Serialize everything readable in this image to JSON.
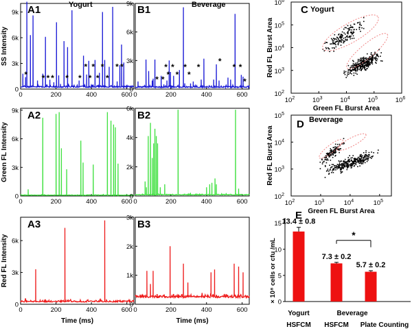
{
  "colors": {
    "blue": "#1a1ad6",
    "green": "#3ee03e",
    "red": "#ee1a1a",
    "bar": "#ee1111",
    "pink": "#f08080",
    "dot": "#000000"
  },
  "chart_data": [
    {
      "id": "A1",
      "type": "line",
      "title": "Yogurt",
      "ylabel": "SS Intensity",
      "xlabel": "",
      "xlim": [
        0,
        640
      ],
      "ylim": [
        0,
        10000
      ],
      "yticks": [
        0,
        3000,
        6000,
        9000
      ],
      "yticklabels": [
        "0",
        "3k",
        "6k",
        "9k"
      ],
      "xticks": [
        0,
        200,
        400,
        600
      ],
      "xticklabels": [
        "0",
        "200",
        "400",
        "600"
      ],
      "color": "blue",
      "baseline": 250,
      "noise": 180,
      "peaks": [
        [
          12,
          1800
        ],
        [
          27,
          1400
        ],
        [
          35,
          10200
        ],
        [
          55,
          6300
        ],
        [
          70,
          8600
        ],
        [
          95,
          1000
        ],
        [
          105,
          300
        ],
        [
          125,
          1800
        ],
        [
          140,
          6100
        ],
        [
          148,
          400
        ],
        [
          165,
          1100
        ],
        [
          188,
          800
        ],
        [
          202,
          7800
        ],
        [
          215,
          1600
        ],
        [
          225,
          600
        ],
        [
          245,
          5600
        ],
        [
          265,
          4900
        ],
        [
          290,
          9200
        ],
        [
          330,
          1000
        ],
        [
          355,
          3900
        ],
        [
          372,
          1700
        ],
        [
          385,
          3300
        ],
        [
          405,
          500
        ],
        [
          420,
          3400
        ],
        [
          445,
          1900
        ],
        [
          462,
          9000
        ],
        [
          475,
          3400
        ],
        [
          500,
          2600
        ],
        [
          520,
          9600
        ],
        [
          545,
          900
        ],
        [
          560,
          2800
        ],
        [
          570,
          5200
        ],
        [
          582,
          3100
        ],
        [
          600,
          500
        ]
      ],
      "stars": [
        [
          30,
          1700
        ],
        [
          128,
          1300
        ],
        [
          155,
          1300
        ],
        [
          180,
          1300
        ],
        [
          262,
          1300
        ],
        [
          335,
          1300
        ],
        [
          368,
          2600
        ],
        [
          392,
          1300
        ],
        [
          410,
          2600
        ],
        [
          435,
          1300
        ],
        [
          462,
          2600
        ],
        [
          490,
          1300
        ],
        [
          545,
          2600
        ],
        [
          572,
          2600
        ]
      ]
    },
    {
      "id": "B1",
      "type": "line",
      "title": "Beverage",
      "ylabel": "",
      "xlabel": "",
      "xlim": [
        0,
        640
      ],
      "ylim": [
        0,
        9000
      ],
      "yticks": [
        0,
        3000,
        6000,
        9000
      ],
      "yticklabels": [
        "0",
        "3k",
        "6k",
        "9k"
      ],
      "xticks": [
        0,
        200,
        400,
        600
      ],
      "xticklabels": [
        "0",
        "200",
        "400",
        "600"
      ],
      "color": "blue",
      "baseline": 200,
      "noise": 150,
      "peaks": [
        [
          15,
          800
        ],
        [
          60,
          3100
        ],
        [
          75,
          1900
        ],
        [
          95,
          900
        ],
        [
          100,
          1100
        ],
        [
          110,
          3100
        ],
        [
          145,
          1400
        ],
        [
          160,
          500
        ],
        [
          178,
          900
        ],
        [
          190,
          3000
        ],
        [
          198,
          1800
        ],
        [
          215,
          1400
        ],
        [
          248,
          2000
        ],
        [
          270,
          8600
        ],
        [
          278,
          600
        ],
        [
          310,
          600
        ],
        [
          325,
          800
        ],
        [
          370,
          1000
        ],
        [
          385,
          3200
        ],
        [
          440,
          1000
        ],
        [
          455,
          2600
        ],
        [
          470,
          900
        ],
        [
          520,
          1200
        ],
        [
          535,
          1000
        ],
        [
          560,
          7900
        ],
        [
          595,
          1500
        ],
        [
          605,
          1300
        ]
      ],
      "stars": [
        [
          122,
          1000
        ],
        [
          155,
          1000
        ],
        [
          172,
          2300
        ],
        [
          185,
          1500
        ],
        [
          210,
          2300
        ],
        [
          235,
          1500
        ],
        [
          280,
          2300
        ],
        [
          302,
          1500
        ],
        [
          355,
          2300
        ],
        [
          475,
          2900
        ],
        [
          555,
          2300
        ],
        [
          590,
          2300
        ],
        [
          615,
          800
        ]
      ]
    },
    {
      "id": "A2",
      "type": "line",
      "title": "",
      "ylabel": "Green FL Intensity",
      "xlabel": "",
      "xlim": [
        0,
        640
      ],
      "ylim": [
        0,
        9200
      ],
      "yticks": [
        0,
        3000,
        6000,
        9000
      ],
      "yticklabels": [
        "0",
        "3k",
        "6k",
        "9k"
      ],
      "xticks": [
        0,
        200,
        400,
        600
      ],
      "xticklabels": [
        "0",
        "200",
        "400",
        "600"
      ],
      "color": "green",
      "baseline": 80,
      "noise": 50,
      "peaks": [
        [
          42,
          700
        ],
        [
          125,
          8200
        ],
        [
          200,
          8600
        ],
        [
          218,
          8800
        ],
        [
          230,
          5000
        ],
        [
          260,
          2800
        ],
        [
          340,
          5800
        ],
        [
          352,
          3500
        ],
        [
          410,
          3300
        ],
        [
          490,
          8800
        ],
        [
          510,
          7900
        ],
        [
          525,
          7500
        ],
        [
          535,
          7200
        ],
        [
          550,
          3400
        ]
      ],
      "stars": []
    },
    {
      "id": "B2",
      "type": "line",
      "title": "",
      "ylabel": "",
      "xlabel": "",
      "xlim": [
        0,
        640
      ],
      "ylim": [
        0,
        6000
      ],
      "yticks": [
        0,
        2000,
        4000,
        6000
      ],
      "yticklabels": [
        "0",
        "2k",
        "4k",
        "6k"
      ],
      "xticks": [
        0,
        200,
        400,
        600
      ],
      "xticklabels": [
        "0",
        "200",
        "400",
        "600"
      ],
      "color": "green",
      "baseline": 80,
      "noise": 50,
      "peaks": [
        [
          55,
          1000
        ],
        [
          63,
          600
        ],
        [
          72,
          4100
        ],
        [
          85,
          5000
        ],
        [
          95,
          2600
        ],
        [
          102,
          3600
        ],
        [
          110,
          4600
        ],
        [
          118,
          4100
        ],
        [
          125,
          3600
        ],
        [
          140,
          600
        ],
        [
          165,
          800
        ],
        [
          240,
          5900
        ],
        [
          400,
          600
        ],
        [
          418,
          800
        ],
        [
          430,
          900
        ],
        [
          448,
          1200
        ],
        [
          455,
          800
        ],
        [
          562,
          5900
        ],
        [
          580,
          500
        ]
      ],
      "stars": []
    },
    {
      "id": "A3",
      "type": "line",
      "title": "",
      "ylabel": "Red FL Intensity",
      "xlabel": "Time (ms)",
      "xlim": [
        0,
        640
      ],
      "ylim": [
        0,
        8200
      ],
      "yticks": [
        0,
        3000,
        6000
      ],
      "yticklabels": [
        "0",
        "3k",
        "6k"
      ],
      "xticks": [
        0,
        200,
        400,
        600
      ],
      "xticklabels": [
        "0",
        "200",
        "400",
        "600"
      ],
      "color": "red",
      "baseline": 250,
      "noise": 140,
      "peaks": [
        [
          85,
          3300
        ],
        [
          250,
          7200
        ],
        [
          475,
          7900
        ]
      ],
      "stars": []
    },
    {
      "id": "B3",
      "type": "line",
      "title": "",
      "ylabel": "",
      "xlabel": "Time (ms)",
      "xlim": [
        0,
        640
      ],
      "ylim": [
        0,
        3000
      ],
      "yticks": [
        0,
        1000,
        2000,
        3000
      ],
      "yticklabels": [
        "0",
        "1k",
        "2k",
        "3k"
      ],
      "xticks": [
        0,
        200,
        400,
        600
      ],
      "xticklabels": [
        "0",
        "200",
        "400",
        "600"
      ],
      "color": "red",
      "baseline": 250,
      "noise": 70,
      "peaks": [
        [
          65,
          1150
        ],
        [
          85,
          700
        ],
        [
          100,
          1150
        ],
        [
          195,
          2000
        ],
        [
          270,
          1400
        ],
        [
          295,
          750
        ],
        [
          425,
          1100
        ],
        [
          445,
          1200
        ],
        [
          555,
          1400
        ],
        [
          580,
          1300
        ],
        [
          605,
          1100
        ]
      ],
      "stars": []
    },
    {
      "id": "C",
      "type": "scatter",
      "title": "Yogurt",
      "xlabel": "Green FL Burst Area",
      "ylabel": "Red FL Burst Area",
      "xlim_log10": [
        2,
        6
      ],
      "ylim_log10": [
        2,
        6
      ],
      "ticklabels": [
        "10",
        "10",
        "10",
        "10",
        "10"
      ],
      "tickexponents": [
        "2",
        "3",
        "4",
        "5",
        "6"
      ],
      "clusters": [
        {
          "name": "upper",
          "n": 160,
          "xc": 3.9,
          "yc": 4.55,
          "dx": 0.9,
          "w": 0.16,
          "slope": 0.78
        },
        {
          "name": "lower",
          "n": 330,
          "xc": 4.55,
          "yc": 3.3,
          "dx": 0.75,
          "w": 0.13,
          "slope": 0.55
        }
      ],
      "ellipses": [
        {
          "cx": 4.15,
          "cy": 4.65,
          "rx": 1.15,
          "ry": 0.42,
          "angle": 30
        },
        {
          "cx": 4.75,
          "cy": 3.85,
          "rx": 0.95,
          "ry": 0.3,
          "angle": 40
        }
      ]
    },
    {
      "id": "D",
      "type": "scatter",
      "title": "Beverage",
      "xlabel": "Green FL Burst Area",
      "ylabel": "Red FL Burst Area",
      "xlim_log10": [
        2,
        5.4
      ],
      "ylim_log10": [
        2,
        5
      ],
      "ticklabels": [
        "10",
        "10",
        "10",
        "10",
        "10",
        "10",
        "10"
      ],
      "tickexponents": [
        "2",
        "3",
        "4",
        "5",
        "2",
        "3",
        "4"
      ],
      "clusters": [
        {
          "name": "upper",
          "n": 120,
          "xc": 3.35,
          "yc": 3.6,
          "dx": 0.45,
          "w": 0.1,
          "slope": 0.9
        },
        {
          "name": "lower",
          "n": 320,
          "xc": 4.0,
          "yc": 3.25,
          "dx": 0.95,
          "w": 0.1,
          "slope": 0.35
        }
      ],
      "ellipses": [
        {
          "cx": 3.35,
          "cy": 3.75,
          "rx": 0.5,
          "ry": 0.14,
          "angle": 38
        },
        {
          "cx": 4.05,
          "cy": 4.0,
          "rx": 0.55,
          "ry": 0.15,
          "angle": 28
        }
      ]
    },
    {
      "id": "E",
      "type": "bar",
      "title": "",
      "ylabel": "× 10⁸ cells or cfu /mL",
      "categories": [
        [
          "Yogurt",
          "HSFCM"
        ],
        [
          "HSFCM"
        ],
        [
          "Plate Counting"
        ]
      ],
      "group_label": "Beverage",
      "values": [
        13.4,
        7.3,
        5.7
      ],
      "errors": [
        0.8,
        0.2,
        0.2
      ],
      "labels": [
        "13.4 ± 0.8",
        "7.3 ± 0.2",
        "5.7 ± 0.2"
      ],
      "significance": "*",
      "ylim": [
        0,
        16
      ],
      "yticks": [
        0,
        5,
        10,
        15
      ],
      "yticklabels": [
        "0",
        "5",
        "10",
        "15"
      ]
    }
  ]
}
